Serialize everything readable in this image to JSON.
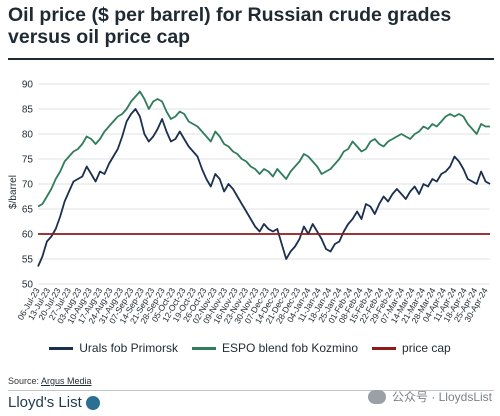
{
  "title": "Oil price ($ per barrel) for Russian crude grades versus oil price cap",
  "source_label": "Source: ",
  "source_name": "Argus Media",
  "logo_text": "Lloyd's List",
  "watermark": "公众号 · LloydsList",
  "colors": {
    "urals": "#1b2f4e",
    "espo": "#2f7d5a",
    "cap": "#8f1a1a",
    "grid": "#d5d9dc",
    "text": "#1f2a33"
  },
  "chart_data": {
    "type": "line",
    "ylabel": "$/barrel",
    "xlabel": "",
    "ylim": [
      50,
      90
    ],
    "yticks": [
      50,
      55,
      60,
      65,
      70,
      75,
      80,
      85,
      90
    ],
    "grid": "horizontal",
    "legend_position": "bottom",
    "x_tick_labels": [
      "06-Jul-23",
      "13-Jul-23",
      "20-Jul-23",
      "27-Jul-23",
      "03-Aug-23",
      "10-Aug-23",
      "17-Aug-23",
      "24-Aug-23",
      "31-Aug-23",
      "07-Sep-23",
      "14-Sep-23",
      "21-Sep-23",
      "28-Sep-23",
      "05-Oct-23",
      "12-Oct-23",
      "19-Oct-23",
      "26-Oct-23",
      "02-Nov-23",
      "09-Nov-23",
      "16-Nov-23",
      "23-Nov-23",
      "30-Nov-23",
      "07-Dec-23",
      "14-Dec-23",
      "21-Dec-23",
      "28-Dec-23",
      "04-Jan-24",
      "11-Jan-24",
      "18-Jan-24",
      "25-Jan-24",
      "01-Feb-24",
      "08-Feb-24",
      "15-Feb-24",
      "22-Feb-24",
      "29-Feb-24",
      "07-Mar-24",
      "14-Mar-24",
      "21-Mar-24",
      "28-Mar-24",
      "04-Apr-24",
      "11-Apr-24",
      "18-Apr-24",
      "25-Apr-24",
      "30-Apr-24"
    ],
    "series": [
      {
        "name": "Urals fob Primorsk",
        "values": [
          53.5,
          55.5,
          58.5,
          59.5,
          61.0,
          63.5,
          66.5,
          68.5,
          70.5,
          71.0,
          71.5,
          73.5,
          72.0,
          70.5,
          72.5,
          72.0,
          74.0,
          75.5,
          77.0,
          79.5,
          82.5,
          84.0,
          85.0,
          83.5,
          80.0,
          78.5,
          79.5,
          81.0,
          83.0,
          80.5,
          78.5,
          79.0,
          80.5,
          79.0,
          77.5,
          76.5,
          75.5,
          73.0,
          71.0,
          69.5,
          72.0,
          71.0,
          68.5,
          70.0,
          69.0,
          67.5,
          66.0,
          64.5,
          63.0,
          61.5,
          60.5,
          62.0,
          61.0,
          60.5,
          61.0,
          58.0,
          55.0,
          56.5,
          57.5,
          59.0,
          61.5,
          60.0,
          62.0,
          60.5,
          59.0,
          57.0,
          56.5,
          58.0,
          58.5,
          60.5,
          62.0,
          63.0,
          64.5,
          63.0,
          66.0,
          65.5,
          64.0,
          66.0,
          67.5,
          66.5,
          68.0,
          69.0,
          68.0,
          67.0,
          68.5,
          69.5,
          68.0,
          70.0,
          69.5,
          71.0,
          70.5,
          72.0,
          72.5,
          73.5,
          75.5,
          74.5,
          73.0,
          71.0,
          70.5,
          70.0,
          72.5,
          70.5,
          70.0
        ]
      },
      {
        "name": "ESPO blend fob Kozmino",
        "values": [
          65.5,
          66.0,
          67.5,
          69.0,
          71.0,
          72.5,
          74.5,
          75.5,
          76.5,
          77.0,
          78.0,
          79.5,
          79.0,
          78.0,
          79.0,
          80.5,
          81.5,
          82.5,
          83.5,
          84.0,
          85.0,
          86.5,
          87.5,
          88.5,
          87.0,
          85.0,
          86.5,
          87.0,
          86.5,
          84.5,
          83.0,
          83.5,
          84.5,
          84.0,
          82.5,
          82.0,
          81.5,
          80.5,
          79.5,
          78.5,
          80.5,
          79.5,
          78.0,
          77.5,
          76.5,
          76.0,
          75.0,
          74.5,
          73.5,
          73.0,
          72.0,
          73.0,
          72.5,
          71.5,
          73.0,
          72.0,
          71.0,
          72.5,
          73.5,
          74.5,
          76.0,
          75.5,
          74.5,
          73.5,
          72.0,
          72.5,
          73.0,
          74.0,
          75.0,
          76.5,
          77.0,
          78.5,
          77.5,
          76.5,
          77.0,
          78.5,
          79.0,
          78.0,
          77.5,
          78.5,
          79.0,
          79.5,
          80.0,
          79.5,
          79.0,
          80.0,
          80.5,
          81.5,
          81.0,
          82.0,
          81.5,
          82.5,
          83.5,
          84.0,
          83.5,
          84.0,
          83.5,
          82.0,
          81.0,
          80.0,
          82.0,
          81.5,
          81.5
        ]
      },
      {
        "name": "price cap",
        "values": [
          60.0,
          60.0
        ]
      }
    ]
  }
}
